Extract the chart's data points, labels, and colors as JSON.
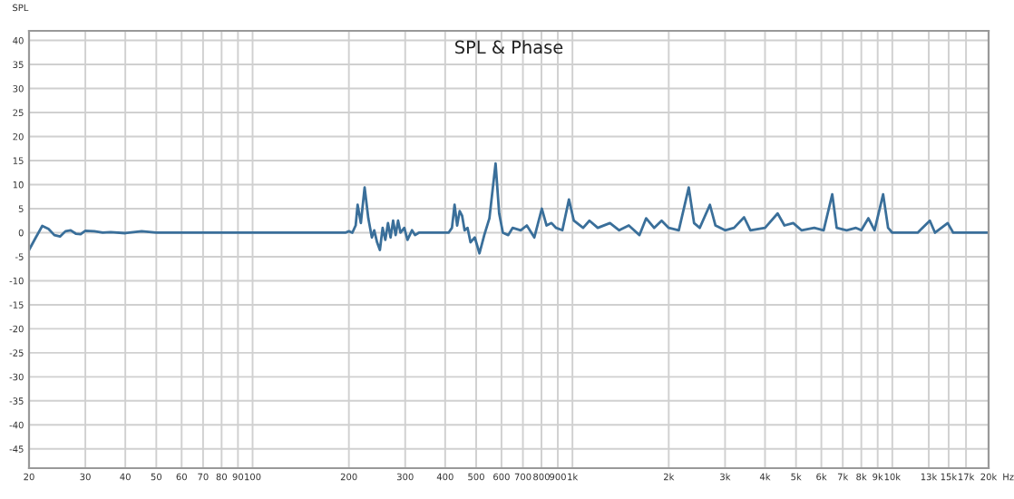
{
  "chart_data": {
    "type": "line",
    "title": "SPL & Phase",
    "ylabel": "SPL",
    "log": "x",
    "grid": true,
    "marker": "none",
    "line_style": "solid",
    "xlim": [
      20,
      20000
    ],
    "ylim": [
      -49,
      42
    ],
    "xticks": [
      20,
      30,
      40,
      50,
      60,
      70,
      80,
      90,
      100,
      200,
      300,
      400,
      500,
      600,
      700,
      800,
      900,
      {
        "value": 1000,
        "label": "1k"
      },
      {
        "value": 2000,
        "label": "2k"
      },
      {
        "value": 3000,
        "label": "3k"
      },
      {
        "value": 4000,
        "label": "4k"
      },
      {
        "value": 5000,
        "label": "5k"
      },
      {
        "value": 6000,
        "label": "6k"
      },
      {
        "value": 7000,
        "label": "7k"
      },
      {
        "value": 8000,
        "label": "8k"
      },
      {
        "value": 9000,
        "label": "9k"
      },
      {
        "value": 10000,
        "label": "10k"
      },
      {
        "value": 13000,
        "label": "13k"
      },
      {
        "value": 15000,
        "label": "15k"
      },
      {
        "value": 17000,
        "label": "17k"
      },
      {
        "value": 20000,
        "label": "20k"
      }
    ],
    "xlabel": "Hz",
    "yticks": [
      -45,
      -40,
      -35,
      -30,
      -25,
      -20,
      -15,
      -10,
      -5,
      0,
      5,
      10,
      15,
      20,
      25,
      30,
      35,
      40
    ],
    "series": [
      {
        "color": "#3a6f9a",
        "x": [
          20,
          21,
          22,
          23,
          24,
          25,
          26,
          27,
          28,
          29,
          30,
          32,
          34,
          36,
          40,
          45,
          50,
          100,
          195,
          200,
          205,
          210,
          213,
          218,
          224,
          230,
          236,
          240,
          245,
          250,
          255,
          260,
          265,
          270,
          275,
          280,
          285,
          290,
          298,
          305,
          315,
          322,
          331,
          410,
          420,
          428,
          436,
          444,
          452,
          460,
          470,
          480,
          495,
          512,
          530,
          550,
          575,
          590,
          606,
          630,
          650,
          689,
          720,
          760,
          802,
          830,
          860,
          889,
          930,
          975,
          1010,
          1080,
          1130,
          1200,
          1310,
          1400,
          1500,
          1620,
          1700,
          1800,
          1900,
          2000,
          2150,
          2310,
          2400,
          2500,
          2690,
          2800,
          3000,
          3200,
          3440,
          3600,
          4000,
          4380,
          4600,
          4900,
          5200,
          5700,
          6100,
          6490,
          6700,
          7200,
          7700,
          8000,
          8420,
          8800,
          9360,
          9700,
          10000,
          12000,
          13100,
          13600,
          14900,
          15500,
          19700
        ],
        "values": [
          -3.6,
          -1,
          1.4,
          0.8,
          -0.5,
          -0.8,
          0.3,
          0.5,
          -0.2,
          -0.3,
          0.4,
          0.3,
          0,
          0.1,
          -0.1,
          0.3,
          0,
          0,
          0,
          0.3,
          0,
          1.5,
          5.8,
          2,
          9.4,
          3,
          -1,
          0.5,
          -2,
          -3.6,
          1,
          -1.5,
          2,
          -1,
          2.5,
          -0.5,
          2.5,
          0,
          1,
          -1.5,
          0.5,
          -0.5,
          0,
          0,
          1,
          5.8,
          1.5,
          4.5,
          3.5,
          0.5,
          1,
          -2,
          -1,
          -4.3,
          -0.5,
          3,
          14.4,
          4,
          0,
          -0.5,
          1,
          0.5,
          1.5,
          -1,
          5,
          1.5,
          2,
          1,
          0.5,
          6.9,
          2.5,
          1,
          2.5,
          1,
          2,
          0.5,
          1.5,
          -0.5,
          3,
          1,
          2.5,
          1,
          0.5,
          9.4,
          2,
          1,
          5.8,
          1.5,
          0.5,
          1,
          3.2,
          0.5,
          1,
          4,
          1.5,
          2,
          0.5,
          1,
          0.5,
          8,
          1,
          0.5,
          1,
          0.5,
          3,
          0.5,
          8,
          1,
          0,
          0,
          2.5,
          0,
          2,
          0,
          0
        ]
      }
    ]
  }
}
